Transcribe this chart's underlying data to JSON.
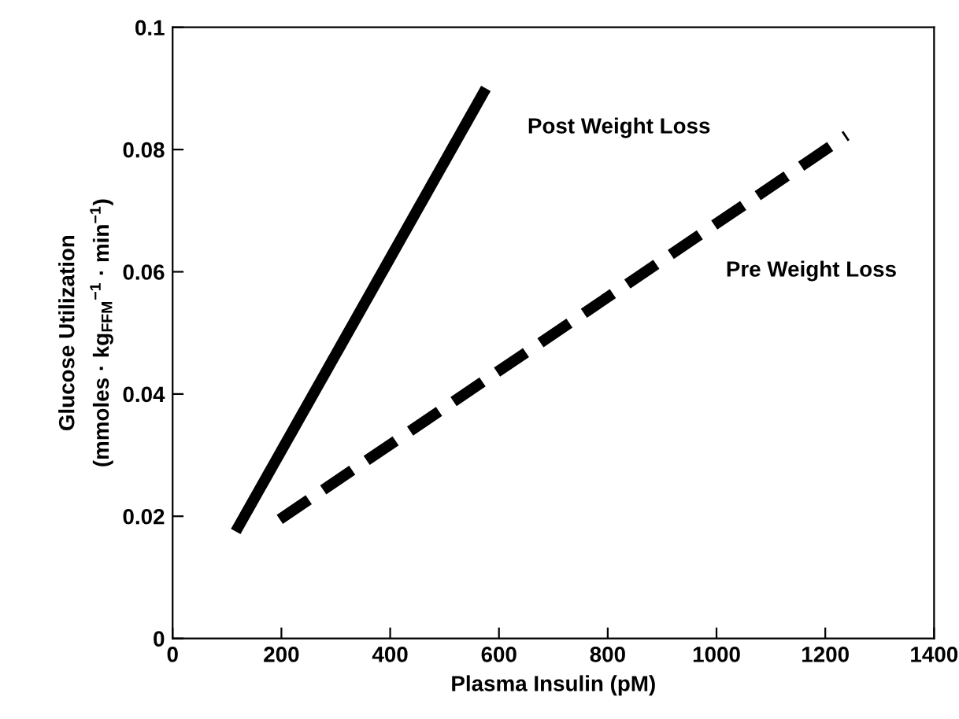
{
  "chart_data": {
    "type": "line",
    "xlabel": "Plasma Insulin (pM)",
    "ylabel": "Glucose Utilization\n(mmoles · kg$_{FFM}$$^{−1}$ · min$^{−1}$)",
    "series": [
      {
        "name": "Post Weight Loss",
        "color": "#000000",
        "line_style": "solid",
        "x": [
          116,
          576
        ],
        "values": [
          0.0175,
          0.09
        ]
      },
      {
        "name": "Pre Weight Loss",
        "color": "#000000",
        "line_style": "dashed",
        "x": [
          197,
          1239
        ],
        "values": [
          0.0195,
          0.0823
        ]
      }
    ],
    "xlim": [
      0,
      1400
    ],
    "xticks": [
      0,
      200,
      400,
      600,
      800,
      1000,
      1200,
      1400
    ],
    "ylim": [
      0,
      0.1
    ],
    "yticks": [
      0,
      0.02,
      0.04,
      0.06,
      0.08,
      0.1
    ],
    "grid": false,
    "legend": false
  }
}
